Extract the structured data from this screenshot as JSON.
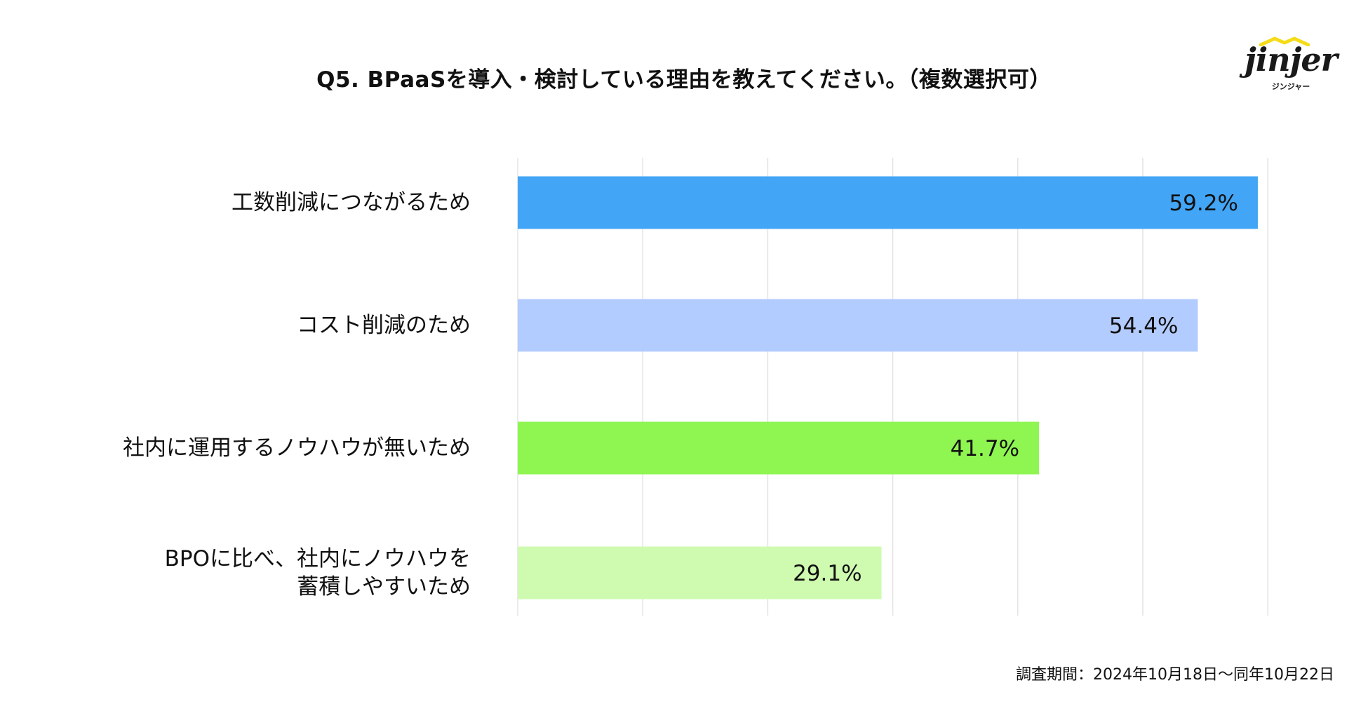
{
  "chart_data": {
    "type": "bar",
    "orientation": "horizontal",
    "title": "Q5. BPaaSを導入・検討している理由を教えてください。（複数選択可）",
    "categories": [
      "工数削減につながるため",
      "コスト削減のため",
      "社内に運用するノウハウが無いため",
      "BPOに比べ、社内にノウハウを\n蓄積しやすいため"
    ],
    "values": [
      59.2,
      54.4,
      41.7,
      29.1
    ],
    "value_labels": [
      "59.2%",
      "54.4%",
      "41.7%",
      "29.1%"
    ],
    "colors": [
      "#42a5f5",
      "#b3ccff",
      "#8ff551",
      "#cffbb1"
    ],
    "xlim": [
      0,
      60
    ],
    "grid": true,
    "legend": "none"
  },
  "logo": {
    "wordmark": "jinjer",
    "subtext": "ジンジャー",
    "accent_color": "#f5dc18"
  },
  "footer": {
    "survey_period": "調査期間：2024年10月18日〜同年10月22日"
  }
}
